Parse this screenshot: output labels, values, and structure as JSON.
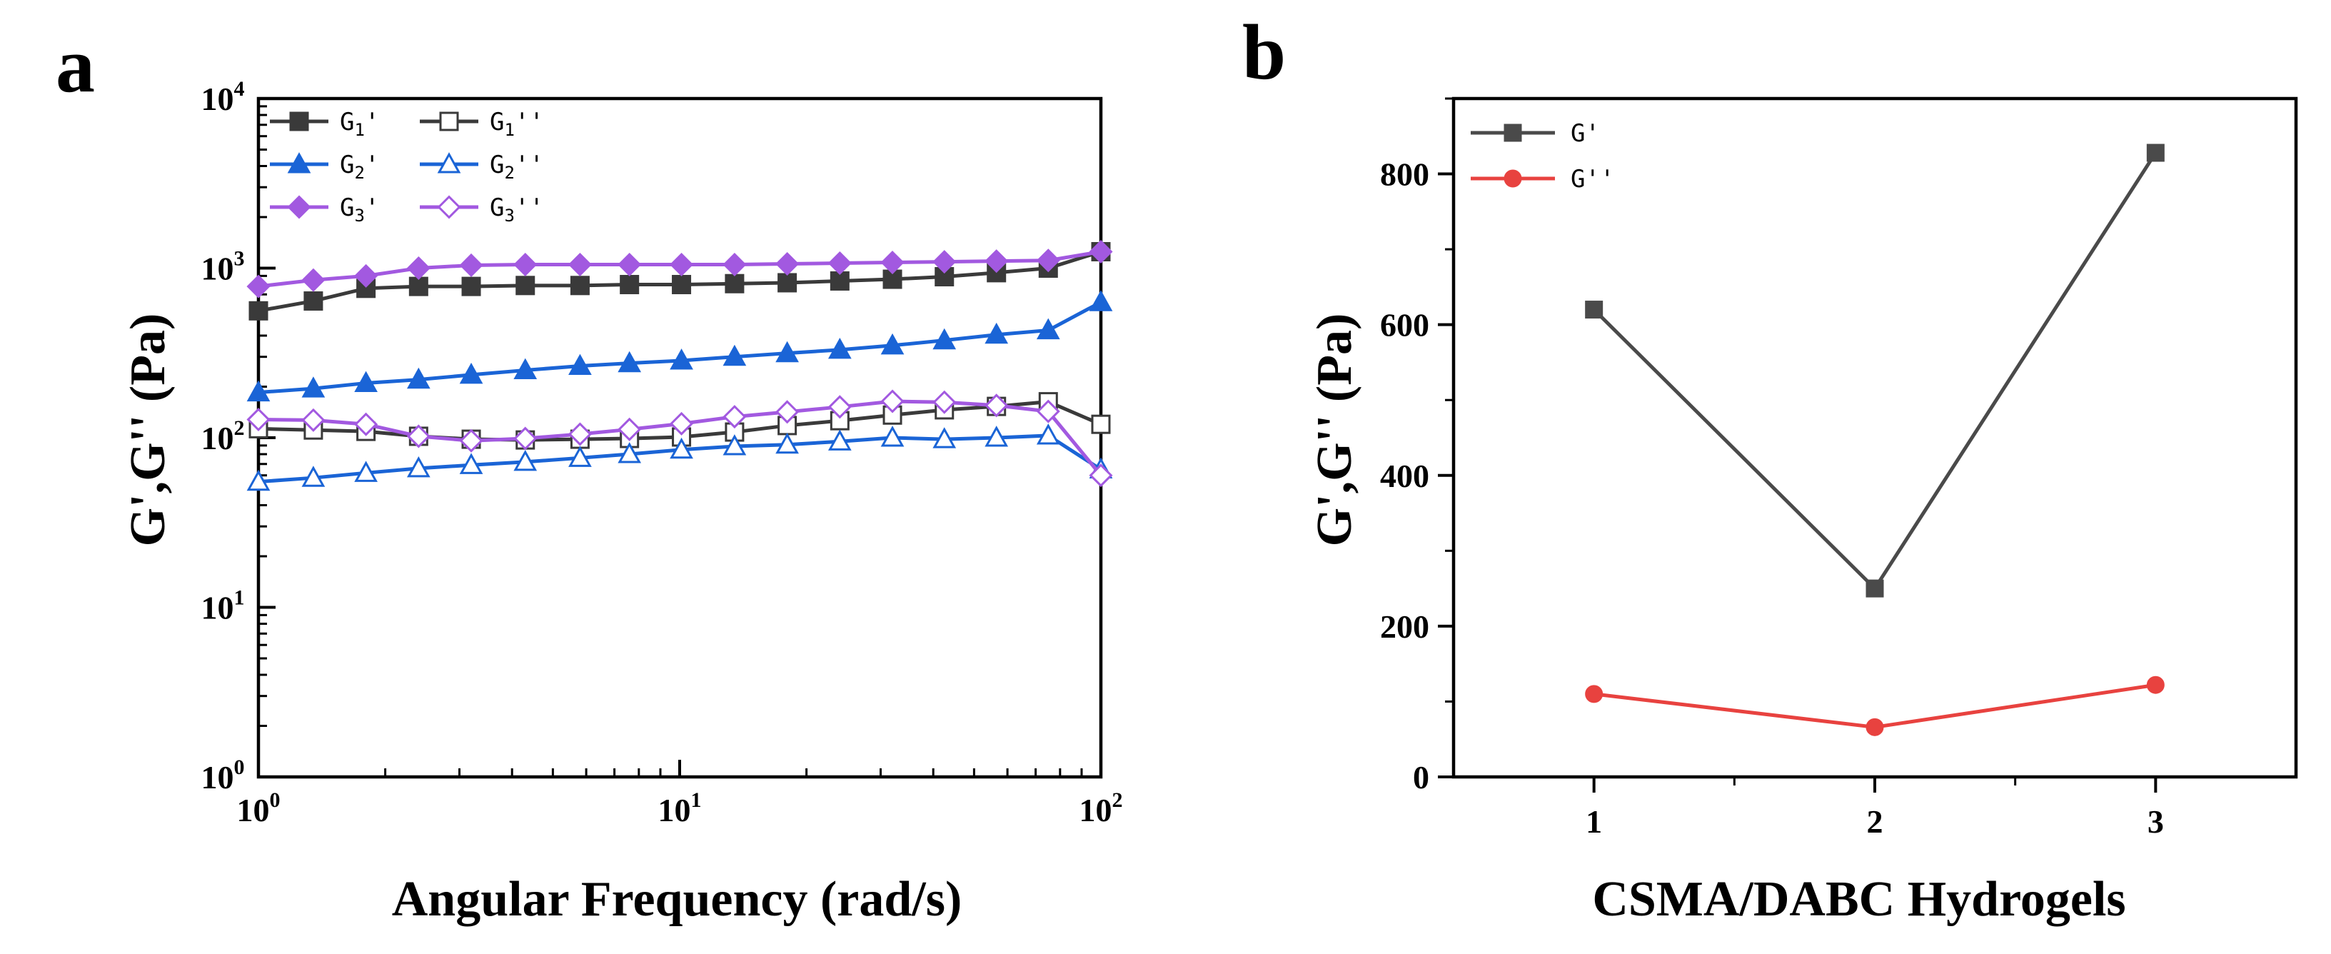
{
  "panels": [
    {
      "label": "a",
      "title": "",
      "xlabel": "Angular Frequency (rad/s)",
      "ylabel": "G',G'' (Pa)",
      "x_ticks": [
        {
          "value": 1,
          "base": "10",
          "exp": "0"
        },
        {
          "value": 10,
          "base": "10",
          "exp": "1"
        },
        {
          "value": 100,
          "base": "10",
          "exp": "2"
        }
      ],
      "y_ticks": [
        {
          "value": 1,
          "base": "10",
          "exp": "0"
        },
        {
          "value": 10,
          "base": "10",
          "exp": "1"
        },
        {
          "value": 100,
          "base": "10",
          "exp": "2"
        },
        {
          "value": 1000,
          "base": "10",
          "exp": "3"
        },
        {
          "value": 10000,
          "base": "10",
          "exp": "4"
        }
      ]
    },
    {
      "label": "b",
      "title": "",
      "xlabel": "CSMA/DABC Hydrogels",
      "ylabel": "G',G'' (Pa)",
      "x_ticks": [
        {
          "value": 1,
          "label": "1"
        },
        {
          "value": 2,
          "label": "2"
        },
        {
          "value": 3,
          "label": "3"
        }
      ],
      "y_ticks": [
        {
          "value": 0,
          "label": "0"
        },
        {
          "value": 200,
          "label": "200"
        },
        {
          "value": 400,
          "label": "400"
        },
        {
          "value": 600,
          "label": "600"
        },
        {
          "value": 800,
          "label": "800"
        }
      ]
    }
  ],
  "chart_data": [
    {
      "type": "line",
      "scale": "log-log",
      "title": "",
      "xlabel": "Angular Frequency (rad/s)",
      "ylabel": "G',G'' (Pa)",
      "xlim": [
        1,
        100
      ],
      "ylim": [
        1,
        10000
      ],
      "legend_position": "top-left",
      "x": [
        1.0,
        1.35,
        1.8,
        2.4,
        3.2,
        4.3,
        5.8,
        7.6,
        10.1,
        13.5,
        18.0,
        24.0,
        32.0,
        42.5,
        56.5,
        75.0,
        100.0
      ],
      "series": [
        {
          "name": "G1'",
          "legend": {
            "base": "G",
            "sub": "1",
            "suffix": "'"
          },
          "color": "#3a3a3a",
          "marker": "square",
          "filled": true,
          "values": [
            560,
            640,
            760,
            780,
            780,
            790,
            790,
            800,
            800,
            810,
            820,
            840,
            860,
            890,
            940,
            1000,
            1250
          ]
        },
        {
          "name": "G1''",
          "legend": {
            "base": "G",
            "sub": "1",
            "suffix": "''"
          },
          "color": "#3a3a3a",
          "marker": "square",
          "filled": false,
          "values": [
            113,
            111,
            109,
            102,
            98,
            97,
            98,
            99,
            101,
            108,
            118,
            126,
            136,
            146,
            153,
            163,
            120
          ]
        },
        {
          "name": "G2'",
          "legend": {
            "base": "G",
            "sub": "2",
            "suffix": "'"
          },
          "color": "#1a64d6",
          "marker": "triangle",
          "filled": true,
          "values": [
            185,
            195,
            210,
            220,
            235,
            250,
            265,
            275,
            285,
            300,
            315,
            330,
            350,
            375,
            405,
            430,
            630
          ]
        },
        {
          "name": "G2''",
          "legend": {
            "base": "G",
            "sub": "2",
            "suffix": "''"
          },
          "color": "#1a64d6",
          "marker": "triangle",
          "filled": false,
          "values": [
            55,
            58,
            62,
            66,
            69,
            72,
            76,
            80,
            85,
            89,
            91,
            95,
            100,
            98,
            100,
            103,
            65
          ]
        },
        {
          "name": "G3'",
          "legend": {
            "base": "G",
            "sub": "3",
            "suffix": "'"
          },
          "color": "#a259e0",
          "marker": "diamond",
          "filled": true,
          "values": [
            780,
            850,
            900,
            1000,
            1040,
            1050,
            1050,
            1050,
            1050,
            1050,
            1060,
            1070,
            1080,
            1090,
            1100,
            1110,
            1250
          ]
        },
        {
          "name": "G3''",
          "legend": {
            "base": "G",
            "sub": "3",
            "suffix": "''"
          },
          "color": "#a259e0",
          "marker": "diamond",
          "filled": false,
          "values": [
            128,
            127,
            120,
            102,
            96,
            99,
            105,
            112,
            121,
            133,
            142,
            152,
            164,
            162,
            155,
            143,
            60
          ]
        }
      ]
    },
    {
      "type": "line",
      "scale": "linear",
      "title": "",
      "xlabel": "CSMA/DABC Hydrogels",
      "ylabel": "G',G'' (Pa)",
      "xlim": [
        0.5,
        3.5
      ],
      "ylim": [
        0,
        900
      ],
      "legend_position": "top-left",
      "x": [
        1,
        2,
        3
      ],
      "series": [
        {
          "name": "G'",
          "legend": {
            "base": "G",
            "suffix": "'"
          },
          "color": "#4a4a4a",
          "marker": "square",
          "filled": true,
          "values": [
            620,
            250,
            828
          ]
        },
        {
          "name": "G''",
          "legend": {
            "base": "G",
            "suffix": "''"
          },
          "color": "#e8423f",
          "marker": "circle",
          "filled": true,
          "values": [
            110,
            66,
            122
          ]
        }
      ]
    }
  ]
}
